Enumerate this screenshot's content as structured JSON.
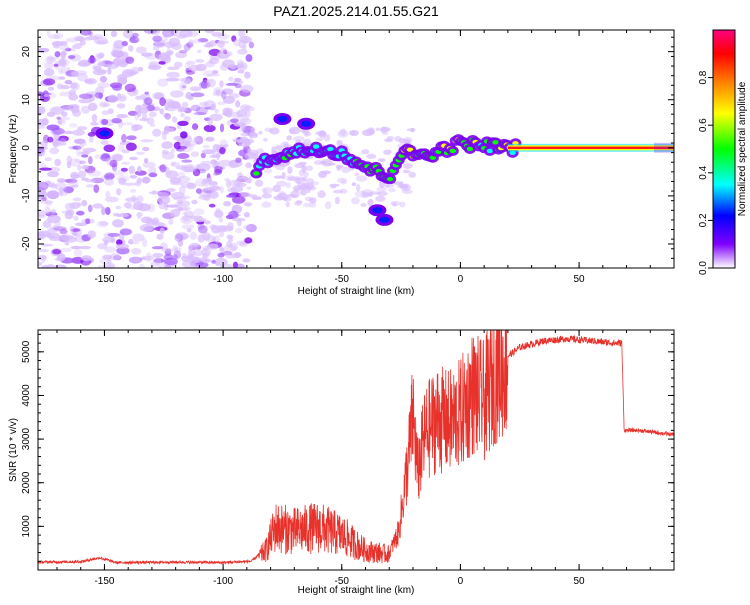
{
  "title": "PAZ1.2025.214.01.55.G21",
  "chart_data": [
    {
      "type": "heatmap",
      "xlabel": "Height of straight line (km)",
      "ylabel": "Frequency (Hz)",
      "xlim": [
        -178,
        90
      ],
      "ylim": [
        -25,
        24.5
      ],
      "xticks": [
        -150,
        -100,
        -50,
        0,
        50
      ],
      "yticks": [
        -20,
        -10,
        0,
        10,
        20
      ],
      "grid": false,
      "colorbar": {
        "label": "Normalized spectral amplitude",
        "range": [
          0,
          1
        ],
        "ticks": [
          0.0,
          0.2,
          0.4,
          0.6,
          0.8
        ],
        "tick_labels": [
          "0.0",
          "0.2",
          "0.4",
          "0.6",
          "0.8"
        ],
        "colormap": "rainbow",
        "colors": [
          "#ffffff",
          "#8000ff",
          "#0000ff",
          "#00ffff",
          "#00ff00",
          "#ffff00",
          "#ff8000",
          "#ff0000",
          "#ff0080"
        ]
      },
      "ridge": {
        "description_points_km_hz": [
          [
            -85,
            -4
          ],
          [
            -80,
            -2
          ],
          [
            -70,
            -1
          ],
          [
            -60,
            0
          ],
          [
            -50,
            -1
          ],
          [
            -40,
            -4
          ],
          [
            -30,
            -6
          ],
          [
            -25,
            -1
          ],
          [
            -15,
            -1.5
          ],
          [
            -5,
            0
          ],
          [
            0,
            1
          ],
          [
            10,
            0.5
          ],
          [
            20,
            0
          ],
          [
            90,
            0
          ]
        ]
      },
      "blobs_km_hz": [
        [
          -150,
          3
        ],
        [
          -35,
          -13
        ],
        [
          -32,
          -15
        ],
        [
          -65,
          5
        ],
        [
          -75,
          6
        ]
      ]
    },
    {
      "type": "line",
      "xlabel": "Height of straight line (km)",
      "ylabel": "SNR (10 * v/v)",
      "xlim": [
        -178,
        90
      ],
      "ylim": [
        0,
        5500
      ],
      "xticks": [
        -150,
        -100,
        -50,
        0,
        50
      ],
      "yticks": [
        1000,
        2000,
        3000,
        4000,
        5000
      ],
      "grid": false,
      "color": "#e8312b",
      "envelope_km_snr": [
        [
          -178,
          180
        ],
        [
          -160,
          190
        ],
        [
          -152,
          280
        ],
        [
          -145,
          170
        ],
        [
          -120,
          180
        ],
        [
          -100,
          170
        ],
        [
          -88,
          200
        ],
        [
          -82,
          500
        ],
        [
          -78,
          1100
        ],
        [
          -70,
          1000
        ],
        [
          -60,
          1100
        ],
        [
          -50,
          900
        ],
        [
          -40,
          500
        ],
        [
          -30,
          400
        ],
        [
          -26,
          900
        ],
        [
          -22,
          2600
        ],
        [
          -20,
          3700
        ],
        [
          -18,
          2300
        ],
        [
          -15,
          3200
        ],
        [
          -10,
          3600
        ],
        [
          -5,
          3500
        ],
        [
          0,
          3700
        ],
        [
          5,
          4200
        ],
        [
          10,
          4000
        ],
        [
          15,
          4700
        ],
        [
          25,
          5100
        ],
        [
          35,
          5250
        ],
        [
          45,
          5300
        ],
        [
          55,
          5250
        ],
        [
          65,
          5200
        ],
        [
          68,
          5200
        ],
        [
          69,
          3200
        ],
        [
          75,
          3200
        ],
        [
          90,
          3100
        ]
      ]
    }
  ]
}
